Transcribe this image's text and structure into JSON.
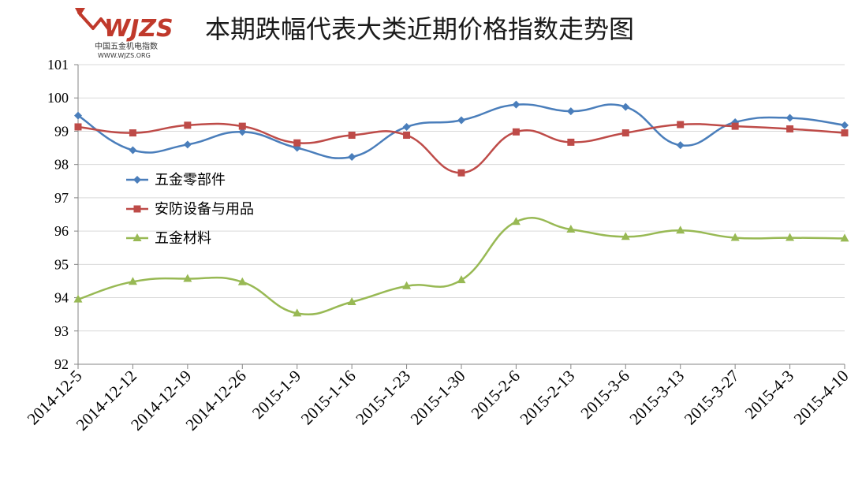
{
  "logo": {
    "brand": "WJZS",
    "subtitle": "中国五金机电指数",
    "url": "WWW.WJZS.ORG",
    "color": "#c0392b"
  },
  "chart_data": {
    "type": "line",
    "title": "本期跌幅代表大类近期价格指数走势图",
    "xlabel": "",
    "ylabel": "",
    "ylim": [
      92,
      101
    ],
    "yticks": [
      92,
      93,
      94,
      95,
      96,
      97,
      98,
      99,
      100,
      101
    ],
    "grid": true,
    "legend_position": "left-middle",
    "categories": [
      "2014-12-5",
      "2014-12-12",
      "2014-12-19",
      "2014-12-26",
      "2015-1-9",
      "2015-1-16",
      "2015-1-23",
      "2015-1-30",
      "2015-2-6",
      "2015-2-13",
      "2015-3-6",
      "2015-3-13",
      "2015-3-27",
      "2015-4-3",
      "2015-4-10"
    ],
    "series": [
      {
        "name": "五金零部件",
        "color": "#4a7ebb",
        "marker": "diamond",
        "values": [
          99.47,
          98.43,
          98.6,
          98.98,
          98.5,
          98.23,
          99.13,
          99.33,
          99.8,
          99.6,
          99.73,
          98.58,
          99.27,
          99.4,
          99.18
        ]
      },
      {
        "name": "安防设备与用品",
        "color": "#be4b48",
        "marker": "square",
        "values": [
          99.13,
          98.95,
          99.18,
          99.15,
          98.65,
          98.88,
          98.88,
          97.75,
          98.98,
          98.67,
          98.95,
          99.2,
          99.15,
          99.07,
          98.95
        ]
      },
      {
        "name": "五金材料",
        "color": "#98b954",
        "marker": "triangle",
        "values": [
          93.95,
          94.48,
          94.57,
          94.47,
          93.53,
          93.87,
          94.35,
          94.53,
          96.28,
          96.05,
          95.83,
          96.02,
          95.8,
          95.8,
          95.78
        ]
      }
    ]
  }
}
